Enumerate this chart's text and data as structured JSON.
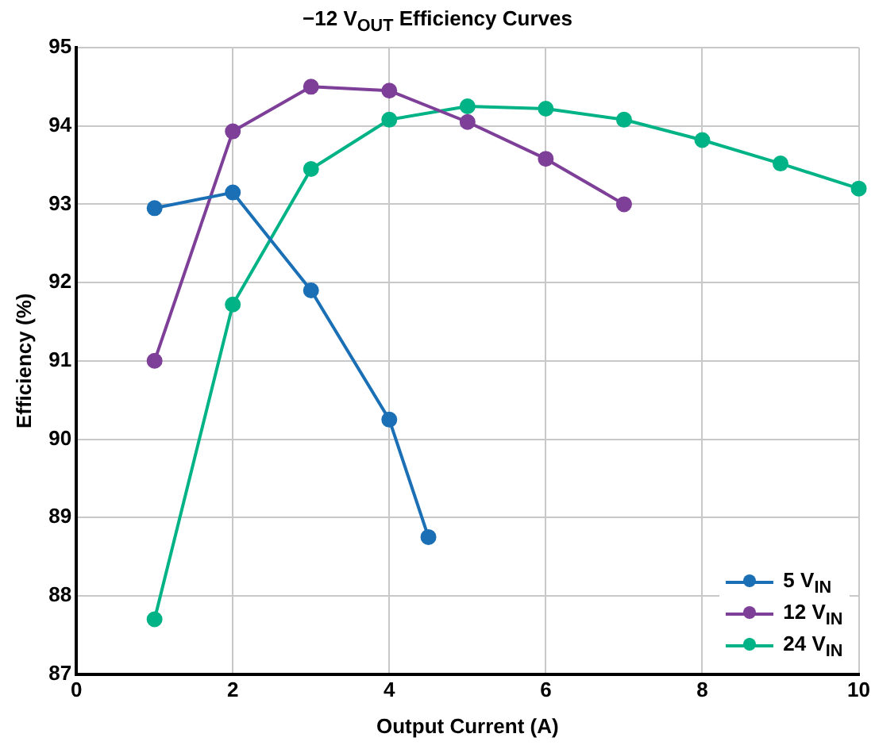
{
  "chart_data": {
    "type": "line",
    "title": "−12 V$_{OUT}$ Efficiency Curves",
    "xlabel": "Output Current (A)",
    "ylabel": "Efficiency (%)",
    "xlim": [
      0,
      10
    ],
    "xticks": [
      0,
      2,
      4,
      6,
      8,
      10
    ],
    "ylim": [
      87,
      95
    ],
    "yticks": [
      87,
      88,
      89,
      90,
      91,
      92,
      93,
      94,
      95
    ],
    "grid": true,
    "legend": "bottom right",
    "marker": "circle",
    "line_style": "solid",
    "series": [
      {
        "name": "5 V$_{IN}$",
        "color": "#1a6fb5",
        "x": [
          1,
          2,
          3,
          4,
          4.5
        ],
        "values": [
          92.95,
          93.15,
          91.9,
          90.25,
          88.75
        ]
      },
      {
        "name": "12 V$_{IN}$",
        "color": "#7d3f98",
        "x": [
          1,
          2,
          3,
          4,
          5,
          6,
          7
        ],
        "values": [
          91.0,
          93.93,
          94.5,
          94.45,
          94.05,
          93.58,
          93.0
        ]
      },
      {
        "name": "24 V$_{IN}$",
        "color": "#00b386",
        "x": [
          1,
          2,
          3,
          4,
          5,
          6,
          7,
          8,
          9,
          10
        ],
        "values": [
          87.7,
          91.72,
          93.45,
          94.08,
          94.25,
          94.22,
          94.08,
          93.82,
          93.52,
          93.2
        ]
      }
    ]
  }
}
